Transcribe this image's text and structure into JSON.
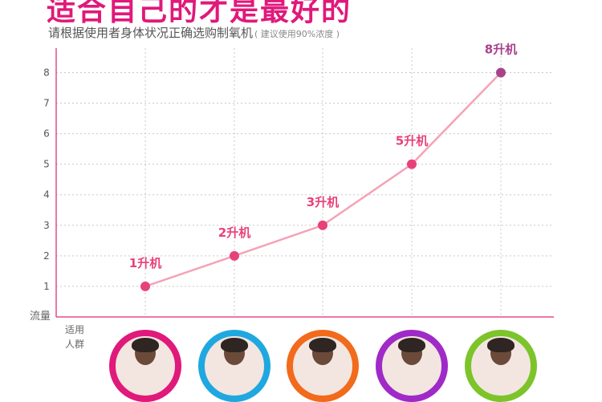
{
  "header": {
    "title": "适合自己的才是最好的",
    "subtitle": "请根据使用者身体状况正确选购制氧机",
    "note": "( 建议使用90%浓度 )"
  },
  "chart_data": {
    "type": "line",
    "ylabel": "流量",
    "xlabel": "适用人群",
    "ylim": [
      0,
      8.8
    ],
    "yticks": [
      1,
      2,
      3,
      4,
      5,
      6,
      7,
      8
    ],
    "grid": true,
    "series": [
      {
        "values": [
          1,
          2,
          3,
          5,
          8
        ],
        "point_labels": [
          "1升机",
          "2升机",
          "3升机",
          "5升机",
          "8升机"
        ]
      }
    ],
    "colors": {
      "line": "#f4a3b5",
      "points": [
        "#e8417a",
        "#e8417a",
        "#e8417a",
        "#e8417a",
        "#a8428a"
      ],
      "labels": [
        "#e8417a",
        "#e8417a",
        "#e8417a",
        "#e8417a",
        "#a8428a"
      ],
      "axis": "#e44d8a",
      "grid": "#c8c8c8"
    }
  },
  "personas": [
    {
      "icon": "elderly-woman-avatar-icon",
      "ring": "#e0197a"
    },
    {
      "icon": "elderly-man-avatar-icon",
      "ring": "#1fa8e0"
    },
    {
      "icon": "middle-aged-man-avatar-icon",
      "ring": "#f26a1b"
    },
    {
      "icon": "man-avatar-icon",
      "ring": "#a02ac8"
    },
    {
      "icon": "senior-man-avatar-icon",
      "ring": "#7cc42a"
    }
  ]
}
